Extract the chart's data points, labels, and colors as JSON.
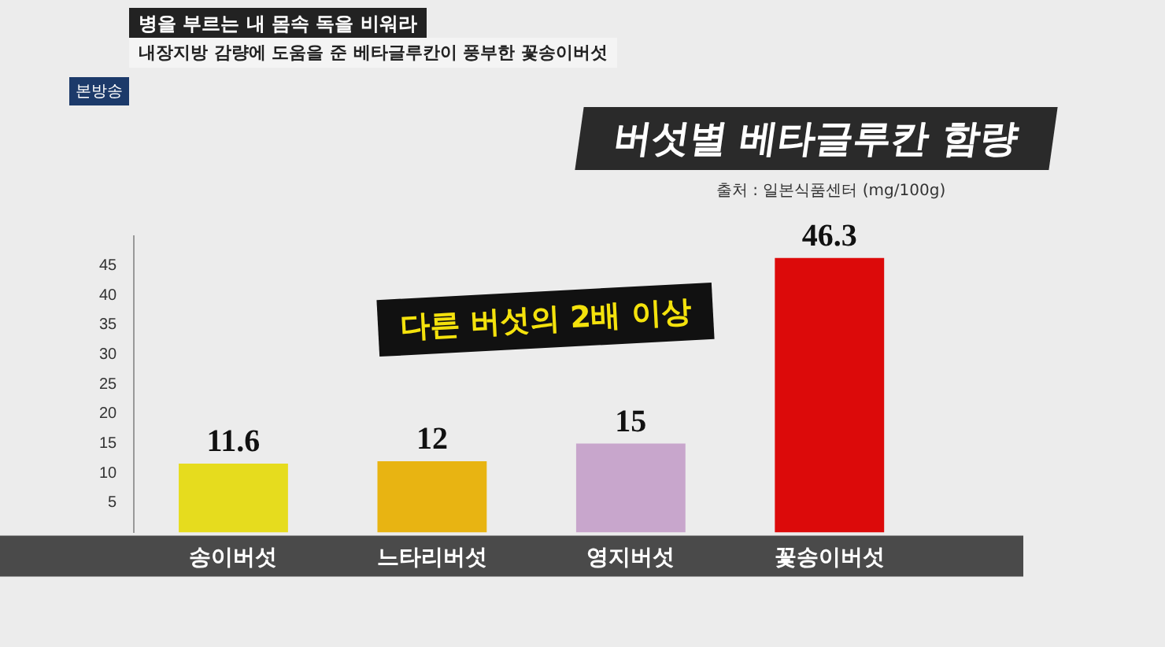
{
  "chart_data": {
    "type": "bar",
    "title": "버섯별 베타글루칸 함량",
    "categories": [
      "송이버섯",
      "느타리버섯",
      "영지버섯",
      "꽃송이버섯"
    ],
    "values": [
      11.6,
      12,
      15,
      46.3
    ],
    "colors": [
      "#e6dc1e",
      "#e8b412",
      "#c8a6cc",
      "#dc0a0a"
    ],
    "ylim": [
      0,
      50
    ],
    "yticks": [
      5,
      10,
      15,
      20,
      25,
      30,
      35,
      40,
      45
    ],
    "grid": false,
    "legend": false,
    "data_labels": true,
    "annotations": [
      "병을 부르는 내 몸속 독을 비워라",
      "내장지방 감량에 도움을 준 베타글루칸이 풍부한 꽃송이버섯",
      "다른 버섯의 2배 이상",
      "출처 : 일본식품센터 (mg/100g)",
      "본방송"
    ]
  }
}
